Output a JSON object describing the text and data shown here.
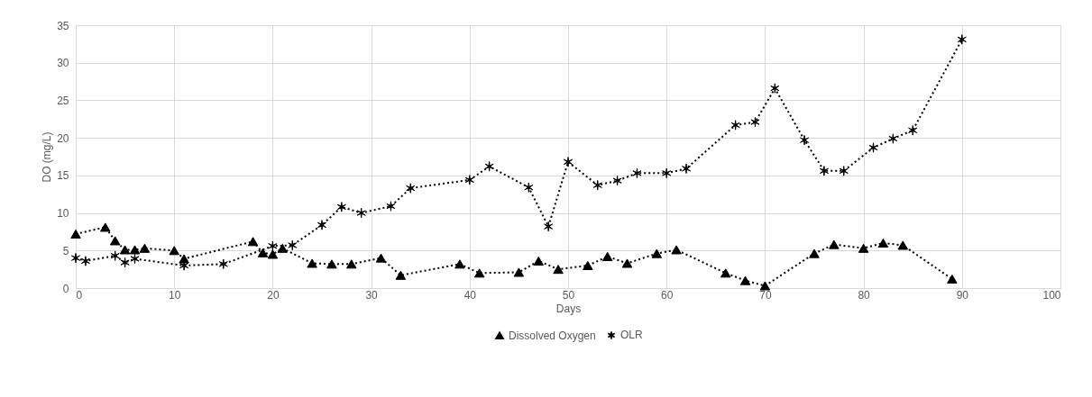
{
  "chart_data": {
    "type": "line",
    "xlabel": "Days",
    "ylabel": "DO (mg/L)",
    "xlim": [
      0,
      100
    ],
    "xticks": [
      0,
      10,
      20,
      30,
      40,
      50,
      60,
      70,
      80,
      90,
      100
    ],
    "ylim": [
      0,
      35
    ],
    "yticks": [
      0,
      5,
      10,
      15,
      20,
      25,
      30,
      35
    ],
    "grid": true,
    "legend": "bottom",
    "line_style": "dotted",
    "series": [
      {
        "name": "Dissolved Oxygen",
        "color": "#000000",
        "marker": "triangle",
        "x": [
          0,
          3,
          4,
          5,
          6,
          7,
          10,
          11,
          18,
          19,
          20,
          21,
          24,
          26,
          28,
          31,
          33,
          39,
          41,
          45,
          47,
          49,
          52,
          54,
          56,
          59,
          61,
          66,
          68,
          70,
          75,
          77,
          80,
          82,
          84,
          89
        ],
        "values": [
          7.2,
          8.1,
          6.3,
          5.1,
          5.1,
          5.3,
          5.0,
          3.9,
          6.2,
          4.7,
          4.5,
          5.3,
          3.3,
          3.2,
          3.2,
          4.0,
          1.7,
          3.2,
          2.0,
          2.1,
          3.6,
          2.5,
          3.0,
          4.2,
          3.3,
          4.6,
          5.1,
          2.0,
          1.0,
          0.3,
          4.6,
          5.8,
          5.3,
          6.0,
          5.7,
          1.2
        ]
      },
      {
        "name": "OLR",
        "color": "#000000",
        "marker": "cross",
        "x": [
          0,
          1,
          4,
          5,
          6,
          11,
          15,
          20,
          22,
          25,
          27,
          29,
          32,
          34,
          40,
          42,
          46,
          48,
          50,
          53,
          55,
          57,
          60,
          62,
          67,
          69,
          71,
          74,
          76,
          78,
          81,
          83,
          85,
          90
        ],
        "values": [
          4.0,
          3.6,
          4.3,
          3.4,
          3.9,
          3.0,
          3.2,
          5.6,
          5.7,
          8.4,
          10.8,
          10.0,
          10.9,
          13.3,
          14.4,
          16.2,
          13.4,
          8.2,
          16.8,
          13.7,
          14.3,
          15.3,
          15.3,
          15.9,
          21.7,
          22.1,
          26.6,
          19.7,
          15.6,
          15.6,
          18.7,
          19.9,
          21.0,
          33.1
        ]
      }
    ]
  }
}
